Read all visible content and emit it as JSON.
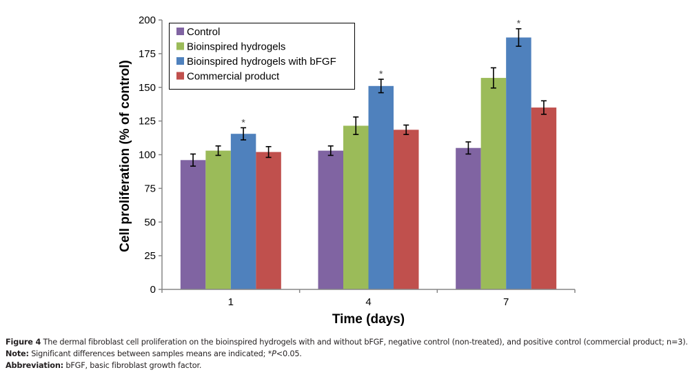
{
  "chart_data": {
    "type": "bar",
    "title": "",
    "xlabel": "Time (days)",
    "ylabel": "Cell proliferation (% of control)",
    "categories": [
      "1",
      "4",
      "7"
    ],
    "ylim": [
      0,
      200
    ],
    "yticks": [
      0,
      25,
      50,
      75,
      100,
      125,
      150,
      175,
      200
    ],
    "grid": false,
    "legend_position": "top-left",
    "series": [
      {
        "name": "Control",
        "color": "#8064a2",
        "values": [
          96,
          103,
          105
        ],
        "errors": [
          4.5,
          3.5,
          4.5
        ],
        "significant": [
          false,
          false,
          false
        ]
      },
      {
        "name": "Bioinspired hydrogels",
        "color": "#9bbb59",
        "values": [
          103,
          121.5,
          157
        ],
        "errors": [
          3.5,
          6.5,
          7.5
        ],
        "significant": [
          false,
          false,
          false
        ]
      },
      {
        "name": "Bioinspired hydrogels with bFGF",
        "color": "#4f81bd",
        "values": [
          115.5,
          151,
          187
        ],
        "errors": [
          4.5,
          5,
          6.5
        ],
        "significant": [
          true,
          true,
          true
        ]
      },
      {
        "name": "Commercial product",
        "color": "#c0504d",
        "values": [
          102,
          118.5,
          135
        ],
        "errors": [
          4,
          3.5,
          5
        ],
        "significant": [
          false,
          false,
          false
        ]
      }
    ],
    "annotations": [
      "*"
    ]
  },
  "caption": {
    "figure_label": "Figure 4",
    "figure_text": " The dermal fibroblast cell proliferation on the bioinspired hydrogels with and without bFGF, negative control (non-treated), and positive control (commercial product; n=3).",
    "note_label": "Note:",
    "note_text_pre": " Significant differences between samples means are indicated; *",
    "note_italic": "P",
    "note_text_post": "<0.05.",
    "abbrev_label": "Abbreviation:",
    "abbrev_text": " bFGF, basic fibroblast growth factor."
  }
}
